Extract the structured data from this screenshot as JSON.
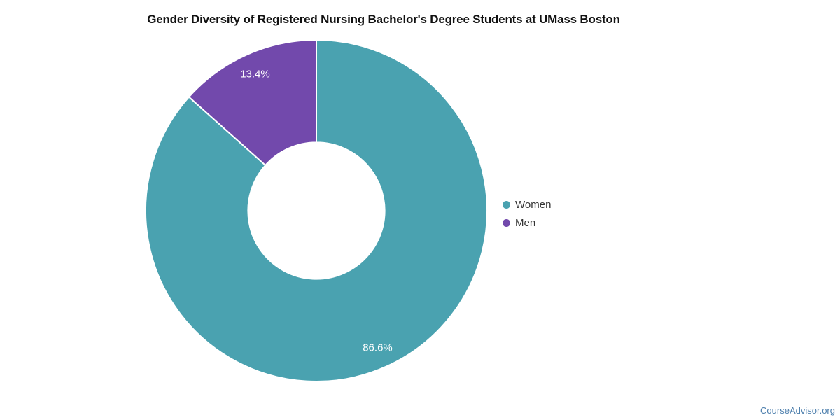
{
  "chart_data": {
    "type": "pie",
    "donut": true,
    "title": "Gender Diversity of Registered Nursing Bachelor's Degree Students at UMass Boston",
    "inner_radius_ratio": 0.4,
    "legend_position": "right",
    "start_angle_deg": 0,
    "direction": "clockwise",
    "slices": [
      {
        "label": "Women",
        "value": 86.6,
        "display": "86.6%",
        "color": "#4aa2b0"
      },
      {
        "label": "Men",
        "value": 13.4,
        "display": "13.4%",
        "color": "#7249ac"
      }
    ],
    "slice_label_color": "#ffffff",
    "slice_border_color": "#ffffff",
    "legend_text_color": "#333333"
  },
  "watermark": {
    "text": "CourseAdvisor.org",
    "color": "#4d7fad"
  }
}
